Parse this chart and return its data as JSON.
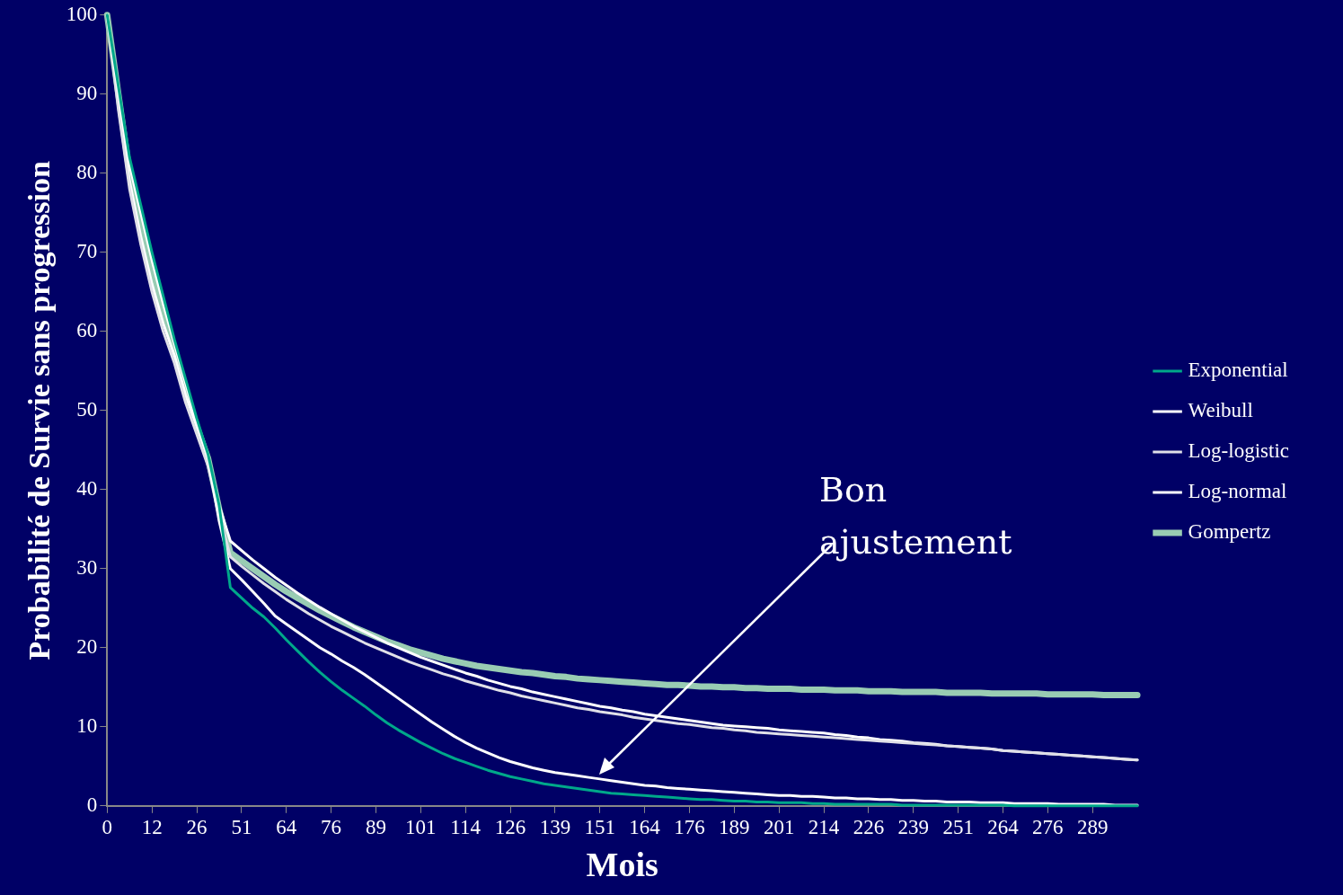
{
  "chart_data": {
    "type": "line",
    "xlabel": "Mois",
    "ylabel": "Probabilité de Survie sans progression",
    "categories": [
      "0",
      null,
      null,
      null,
      "12",
      null,
      null,
      null,
      "26",
      null,
      null,
      null,
      "51",
      null,
      null,
      null,
      "64",
      null,
      null,
      null,
      "76",
      null,
      null,
      null,
      "89",
      null,
      null,
      null,
      "101",
      null,
      null,
      null,
      "114",
      null,
      null,
      null,
      "126",
      null,
      null,
      null,
      "139",
      null,
      null,
      null,
      "151",
      null,
      null,
      null,
      "164",
      null,
      null,
      null,
      "176",
      null,
      null,
      null,
      "189",
      null,
      null,
      null,
      "201",
      null,
      null,
      null,
      "214",
      null,
      null,
      null,
      "226",
      null,
      null,
      null,
      "239",
      null,
      null,
      null,
      "251",
      null,
      null,
      null,
      "264",
      null,
      null,
      null,
      "276",
      null,
      null,
      null,
      "289",
      null,
      null,
      null,
      null
    ],
    "series": [
      {
        "name": "Exponential",
        "color": "#00a88a",
        "values": [
          100,
          91,
          82,
          76,
          70,
          64.5,
          59,
          54,
          49,
          44.5,
          38,
          27.6,
          26.3,
          25.0,
          23.9,
          22.5,
          21.0,
          19.6,
          18.2,
          16.9,
          15.7,
          14.6,
          13.6,
          12.6,
          11.5,
          10.5,
          9.6,
          8.8,
          8.0,
          7.3,
          6.6,
          6.0,
          5.5,
          5.0,
          4.5,
          4.1,
          3.7,
          3.4,
          3.1,
          2.8,
          2.6,
          2.4,
          2.2,
          2.0,
          1.8,
          1.6,
          1.5,
          1.4,
          1.3,
          1.2,
          1.1,
          1.0,
          0.9,
          0.8,
          0.8,
          0.7,
          0.6,
          0.6,
          0.5,
          0.5,
          0.4,
          0.4,
          0.4,
          0.3,
          0.3,
          0.2,
          0.2,
          0.2,
          0.2,
          0.2,
          0.2,
          0.1,
          0.1,
          0.1,
          0.1,
          0.1,
          0.1,
          0.1,
          0.1,
          0.1,
          0.1,
          0,
          0,
          0,
          0,
          0,
          0,
          0,
          0,
          0,
          0,
          0,
          0
        ]
      },
      {
        "name": "Weibull",
        "color": "#ffffff",
        "values": [
          100,
          90,
          81,
          75,
          69,
          63.5,
          58.5,
          53.5,
          48.5,
          44,
          36,
          30.0,
          28.6,
          27.1,
          25.6,
          24.0,
          23.0,
          22.0,
          21.0,
          20.0,
          19.2,
          18.3,
          17.5,
          16.6,
          15.6,
          14.6,
          13.6,
          12.6,
          11.6,
          10.6,
          9.7,
          8.8,
          8.0,
          7.3,
          6.7,
          6.1,
          5.6,
          5.2,
          4.8,
          4.5,
          4.2,
          4.0,
          3.8,
          3.6,
          3.4,
          3.2,
          3.0,
          2.8,
          2.6,
          2.5,
          2.3,
          2.2,
          2.1,
          2.0,
          1.9,
          1.8,
          1.7,
          1.6,
          1.5,
          1.4,
          1.3,
          1.3,
          1.2,
          1.2,
          1.1,
          1.0,
          1.0,
          0.9,
          0.9,
          0.8,
          0.8,
          0.7,
          0.7,
          0.6,
          0.6,
          0.5,
          0.5,
          0.5,
          0.4,
          0.4,
          0.4,
          0.3,
          0.3,
          0.3,
          0.3,
          0.2,
          0.2,
          0.2,
          0.2,
          0.2,
          0.1,
          0.1,
          0.1
        ]
      },
      {
        "name": "Log-logistic",
        "color": "#e0e0e8",
        "values": [
          100,
          88,
          78,
          71,
          65,
          60,
          56,
          51,
          47,
          43,
          37,
          31.5,
          30.3,
          29.2,
          28.1,
          27.1,
          26.1,
          25.2,
          24.3,
          23.5,
          22.7,
          22.0,
          21.3,
          20.6,
          20.0,
          19.4,
          18.8,
          18.2,
          17.7,
          17.2,
          16.7,
          16.3,
          15.8,
          15.4,
          15.0,
          14.6,
          14.3,
          13.9,
          13.6,
          13.3,
          13.0,
          12.7,
          12.4,
          12.2,
          11.9,
          11.7,
          11.5,
          11.2,
          11.0,
          10.8,
          10.6,
          10.4,
          10.3,
          10.1,
          9.9,
          9.8,
          9.6,
          9.5,
          9.3,
          9.2,
          9.1,
          9.0,
          8.9,
          8.8,
          8.7,
          8.6,
          8.5,
          8.4,
          8.3,
          8.2,
          8.1,
          8.0,
          7.9,
          7.8,
          7.7,
          7.6,
          7.5,
          7.4,
          7.3,
          7.2,
          7.0,
          6.9,
          6.8,
          6.7,
          6.6,
          6.5,
          6.4,
          6.3,
          6.2,
          6.1,
          6.0,
          5.9,
          5.8
        ]
      },
      {
        "name": "Log-normal",
        "color": "#ffffff",
        "values": [
          100,
          89,
          79,
          72,
          66,
          61,
          57,
          52,
          48,
          44,
          38,
          33.5,
          32.3,
          31.1,
          30.0,
          28.9,
          27.9,
          26.9,
          26.0,
          25.1,
          24.3,
          23.5,
          22.7,
          22.0,
          21.3,
          20.6,
          20.0,
          19.4,
          18.8,
          18.3,
          17.8,
          17.3,
          16.8,
          16.4,
          15.9,
          15.5,
          15.1,
          14.8,
          14.4,
          14.1,
          13.8,
          13.5,
          13.2,
          12.9,
          12.6,
          12.4,
          12.1,
          11.9,
          11.6,
          11.4,
          11.2,
          11.0,
          10.8,
          10.6,
          10.4,
          10.2,
          10.1,
          10.0,
          9.9,
          9.8,
          9.6,
          9.5,
          9.4,
          9.3,
          9.2,
          9.0,
          8.9,
          8.7,
          8.6,
          8.4,
          8.3,
          8.2,
          8.0,
          7.9,
          7.8,
          7.6,
          7.5,
          7.4,
          7.3,
          7.2,
          7.0,
          6.9,
          6.8,
          6.7,
          6.6,
          6.5,
          6.4,
          6.3,
          6.2,
          6.1,
          6.0,
          5.9,
          5.8
        ]
      },
      {
        "name": "Gompertz",
        "color": "#99ccb3",
        "values": [
          100,
          90,
          80,
          73,
          67,
          62,
          57.5,
          52.5,
          48,
          44,
          37.5,
          32.0,
          31.0,
          30.0,
          29.0,
          28.0,
          27.1,
          26.3,
          25.5,
          24.7,
          24.0,
          23.3,
          22.6,
          22.0,
          21.4,
          20.8,
          20.3,
          19.8,
          19.4,
          19.0,
          18.6,
          18.3,
          18.0,
          17.7,
          17.5,
          17.3,
          17.1,
          16.9,
          16.8,
          16.6,
          16.4,
          16.3,
          16.1,
          16.0,
          15.9,
          15.8,
          15.7,
          15.6,
          15.5,
          15.4,
          15.3,
          15.3,
          15.2,
          15.1,
          15.1,
          15.0,
          15.0,
          14.9,
          14.9,
          14.8,
          14.8,
          14.8,
          14.7,
          14.7,
          14.7,
          14.6,
          14.6,
          14.6,
          14.5,
          14.5,
          14.5,
          14.4,
          14.4,
          14.4,
          14.4,
          14.3,
          14.3,
          14.3,
          14.3,
          14.2,
          14.2,
          14.2,
          14.2,
          14.2,
          14.1,
          14.1,
          14.1,
          14.1,
          14.1,
          14.0,
          14.0,
          14.0,
          14.0
        ]
      }
    ],
    "ylim": [
      0,
      100
    ],
    "yticks": [
      0,
      10,
      20,
      30,
      40,
      50,
      60,
      70,
      80,
      90,
      100
    ],
    "legend": "right",
    "marker": "none",
    "annotations": [
      "Bon ajustement"
    ]
  }
}
